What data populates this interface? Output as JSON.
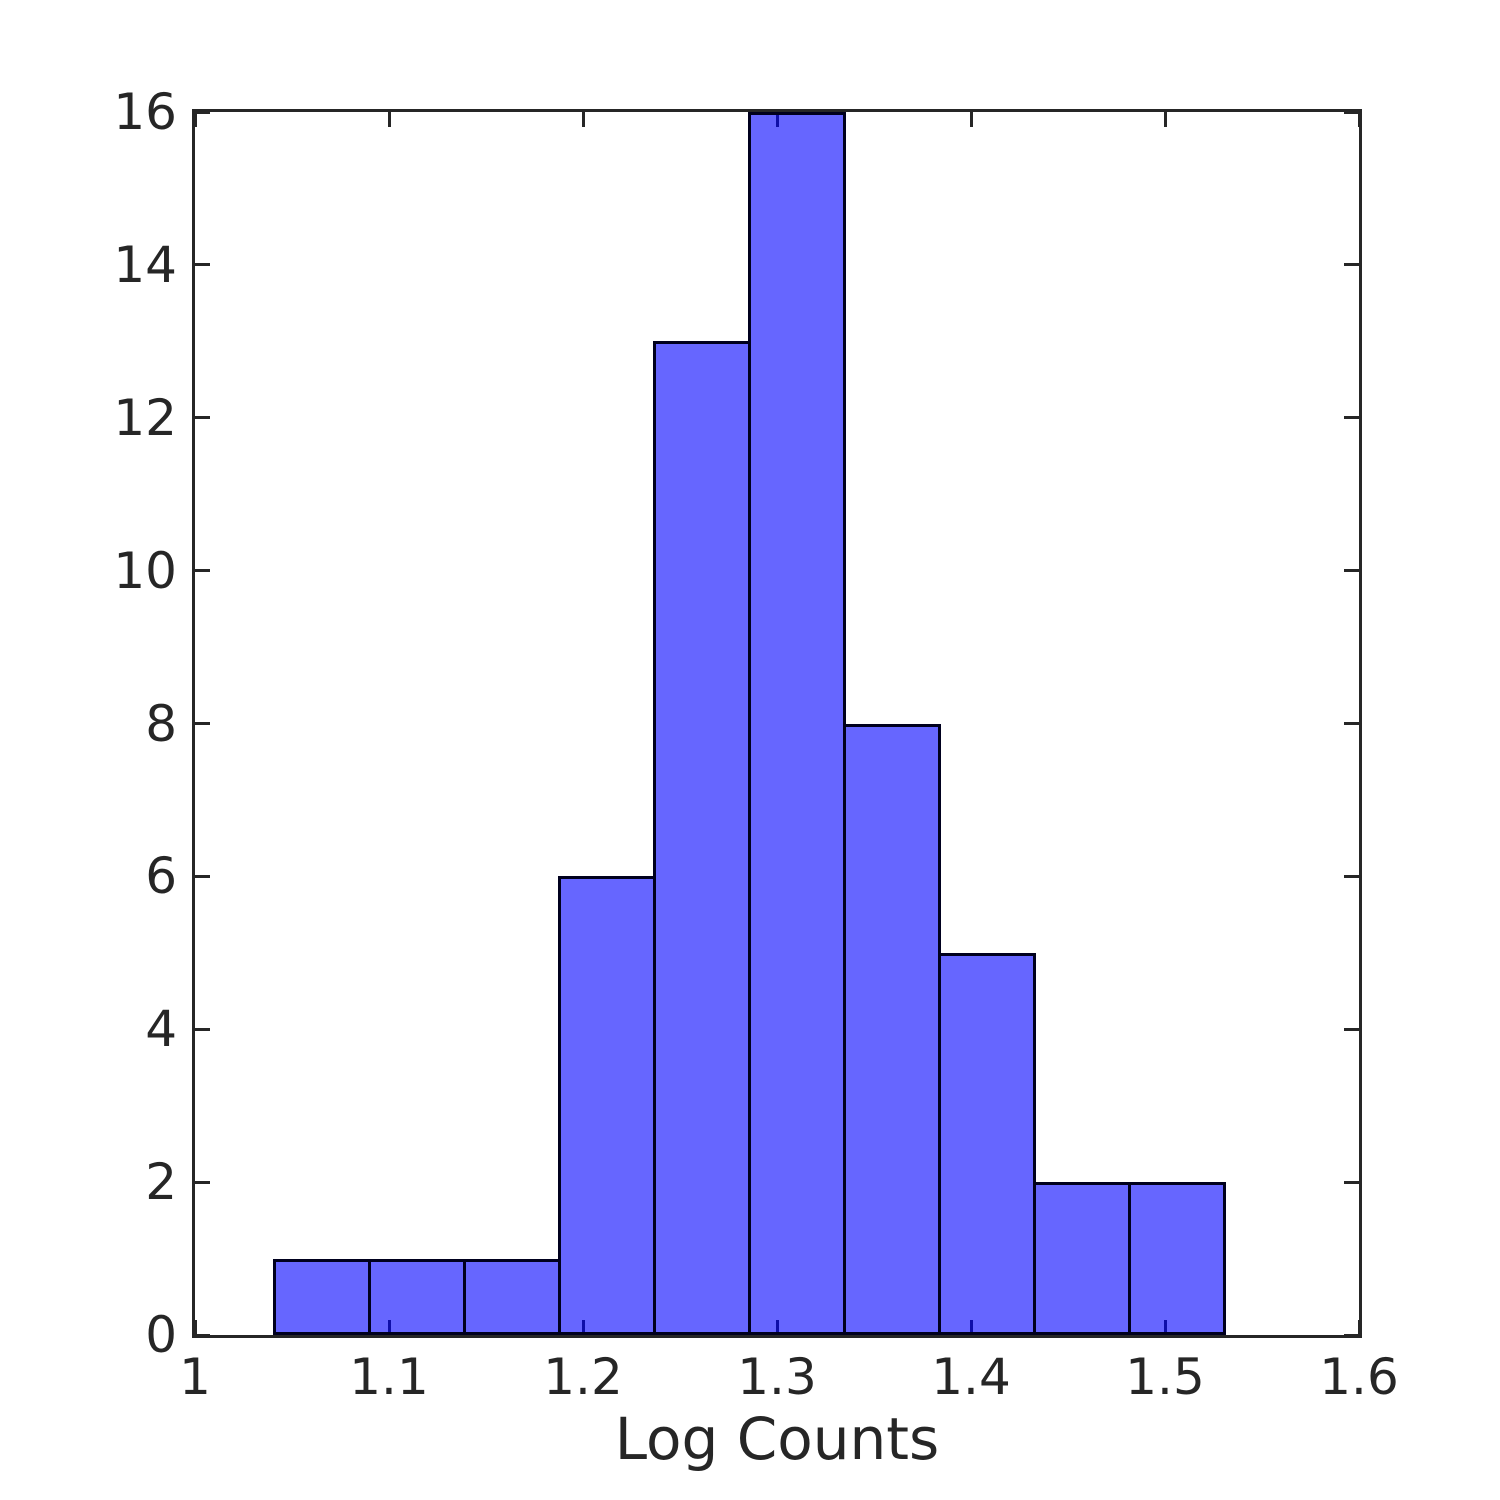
{
  "figure": {
    "background_color": "#ffffff",
    "axis_color": "#262626",
    "text_color": "#262626",
    "bar_face_color": "rgba(0, 0, 255, 0.6)",
    "bar_face_rendered_hex": "#6666ff",
    "bar_edge_color": "#00001e"
  },
  "chart_data": {
    "type": "bar",
    "subtype": "histogram",
    "title": "",
    "xlabel": "Log Counts",
    "ylabel": "",
    "bin_edges": [
      1.04,
      1.089,
      1.138,
      1.187,
      1.236,
      1.285,
      1.334,
      1.383,
      1.432,
      1.481,
      1.53
    ],
    "counts": [
      1,
      1,
      1,
      6,
      13,
      16,
      8,
      5,
      2,
      2
    ],
    "xlim": [
      1.0,
      1.6
    ],
    "ylim": [
      0,
      16
    ],
    "x_ticks": [
      1.0,
      1.1,
      1.2,
      1.3,
      1.4,
      1.5,
      1.6
    ],
    "x_tick_labels": [
      "1",
      "1.1",
      "1.2",
      "1.3",
      "1.4",
      "1.5",
      "1.6"
    ],
    "y_ticks": [
      0,
      2,
      4,
      6,
      8,
      10,
      12,
      14,
      16
    ],
    "y_tick_labels": [
      "0",
      "2",
      "4",
      "6",
      "8",
      "10",
      "12",
      "14",
      "16"
    ],
    "grid": false,
    "legend": null,
    "box": true,
    "tick_direction": "in",
    "ticks_mirrored": true
  }
}
